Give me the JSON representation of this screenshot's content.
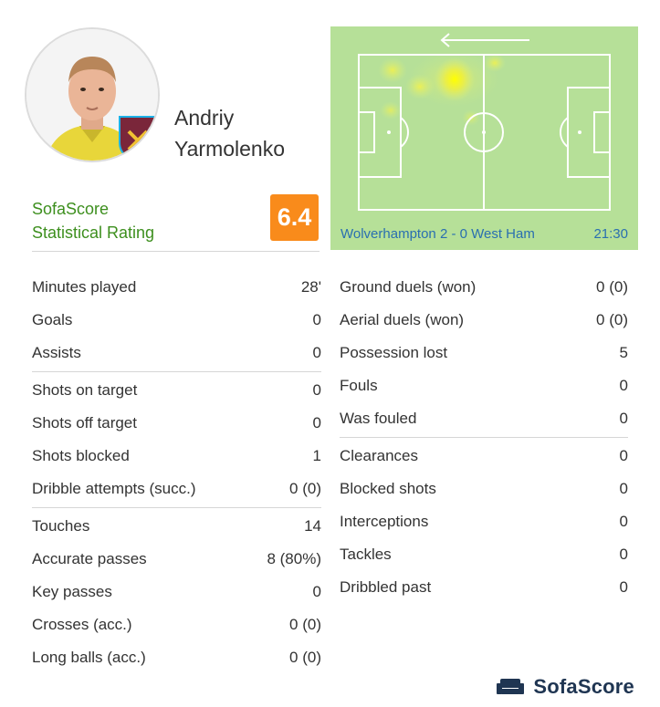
{
  "player": {
    "first_name": "Andriy",
    "last_name": "Yarmolenko",
    "club_badge_text": "WEST HAM UNITED"
  },
  "rating": {
    "label_line1": "SofaScore",
    "label_line2": "Statistical Rating",
    "value": "6.4",
    "badge_color": "#f98b1b"
  },
  "heatmap": {
    "match": "Wolverhampton 2 - 0 West Ham",
    "time": "21:30",
    "attack_direction": "left",
    "pitch_color": "#b6e098"
  },
  "stats_left": [
    [
      {
        "label": "Minutes played",
        "value": "28'"
      },
      {
        "label": "Goals",
        "value": "0"
      },
      {
        "label": "Assists",
        "value": "0"
      }
    ],
    [
      {
        "label": "Shots on target",
        "value": "0"
      },
      {
        "label": "Shots off target",
        "value": "0"
      },
      {
        "label": "Shots blocked",
        "value": "1"
      },
      {
        "label": "Dribble attempts (succ.)",
        "value": "0 (0)"
      }
    ],
    [
      {
        "label": "Touches",
        "value": "14"
      },
      {
        "label": "Accurate passes",
        "value": "8 (80%)"
      },
      {
        "label": "Key passes",
        "value": "0"
      },
      {
        "label": "Crosses (acc.)",
        "value": "0 (0)"
      },
      {
        "label": "Long balls (acc.)",
        "value": "0 (0)"
      }
    ]
  ],
  "stats_right": [
    [
      {
        "label": "Ground duels (won)",
        "value": "0 (0)"
      },
      {
        "label": "Aerial duels (won)",
        "value": "0 (0)"
      },
      {
        "label": "Possession lost",
        "value": "5"
      },
      {
        "label": "Fouls",
        "value": "0"
      },
      {
        "label": "Was fouled",
        "value": "0"
      }
    ],
    [
      {
        "label": "Clearances",
        "value": "0"
      },
      {
        "label": "Blocked shots",
        "value": "0"
      },
      {
        "label": "Interceptions",
        "value": "0"
      },
      {
        "label": "Tackles",
        "value": "0"
      },
      {
        "label": "Dribbled past",
        "value": "0"
      }
    ]
  ],
  "footer": {
    "brand": "SofaScore",
    "logo_icon": "sofa-icon"
  }
}
